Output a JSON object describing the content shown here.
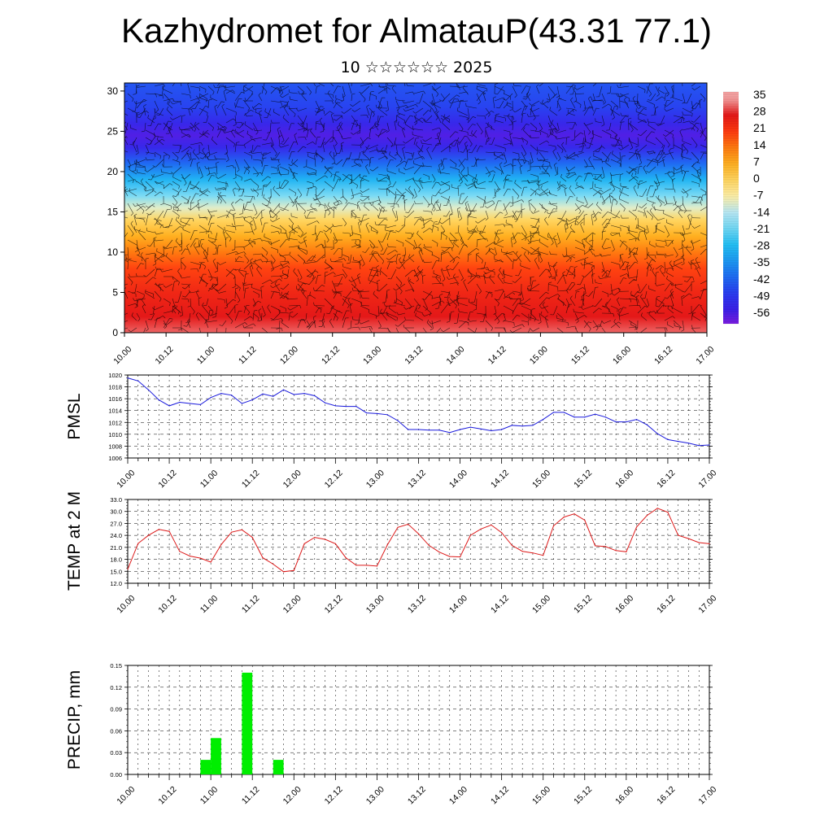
{
  "header": {
    "title": "Kazhydromet for AlmatauP(43.31 77.1)",
    "subtitle": "10 ☆☆☆☆☆☆ 2025"
  },
  "colors": {
    "pmsl_line": "#1a1adc",
    "temp_line": "#dc1a1a",
    "precip_bar": "#00ee00",
    "grid": "#000000"
  },
  "chart_data": [
    {
      "type": "heatmap",
      "title": "",
      "ylabel": "",
      "ylim": [
        0,
        31
      ],
      "y_ticks": [
        "0",
        "5",
        "10",
        "15",
        "20",
        "25",
        "30"
      ],
      "x_ticks": [
        "10.00",
        "10.12",
        "11.00",
        "11.12",
        "12.00",
        "12.12",
        "13.00",
        "13.12",
        "14.00",
        "14.12",
        "15.00",
        "15.12",
        "16.00",
        "16.12",
        "17.00"
      ],
      "overlay": "wind barbs",
      "colorbar_labels": [
        "35",
        "28",
        "21",
        "14",
        "7",
        "0",
        "-7",
        "-14",
        "-21",
        "-28",
        "-35",
        "-42",
        "-49",
        "-56"
      ],
      "profile": [
        {
          "h": 0,
          "t": 32
        },
        {
          "h": 2,
          "t": 28
        },
        {
          "h": 5,
          "t": 25
        },
        {
          "h": 8,
          "t": 20
        },
        {
          "h": 10,
          "t": 14
        },
        {
          "h": 12,
          "t": 7
        },
        {
          "h": 14,
          "t": 0
        },
        {
          "h": 15.5,
          "t": -10
        },
        {
          "h": 17,
          "t": -20
        },
        {
          "h": 19,
          "t": -30
        },
        {
          "h": 21,
          "t": -42
        },
        {
          "h": 23,
          "t": -54
        },
        {
          "h": 24.5,
          "t": -58
        },
        {
          "h": 26,
          "t": -54
        },
        {
          "h": 28,
          "t": -48
        },
        {
          "h": 31,
          "t": -45
        }
      ]
    },
    {
      "type": "line",
      "ylabel": "PMSL",
      "ylim": [
        1006,
        1020
      ],
      "y_ticks": [
        "1006",
        "1008",
        "1010",
        "1012",
        "1014",
        "1016",
        "1018",
        "1020"
      ],
      "x_ticks": [
        "10.00",
        "10.12",
        "11.00",
        "11.12",
        "12.00",
        "12.12",
        "13.00",
        "13.12",
        "14.00",
        "14.12",
        "15.00",
        "15.12",
        "16.00",
        "16.12",
        "17.00"
      ],
      "x": [
        0,
        3,
        6,
        9,
        12,
        15,
        18,
        21,
        24,
        27,
        30,
        33,
        36,
        39,
        42,
        45,
        48,
        51,
        54,
        57,
        60,
        63,
        66,
        69,
        72,
        75,
        78,
        81,
        84,
        87,
        90,
        93,
        96,
        99,
        102,
        105,
        108,
        111,
        114,
        117,
        120,
        123,
        126,
        129,
        132,
        135,
        138,
        141,
        144,
        147,
        150,
        153,
        156,
        159,
        162,
        165,
        168
      ],
      "series": [
        {
          "values": [
            1019.5,
            1019.0,
            1017.5,
            1015.8,
            1014.8,
            1015.4,
            1015.2,
            1015.0,
            1016.2,
            1016.9,
            1016.6,
            1015.2,
            1015.8,
            1016.8,
            1016.4,
            1017.5,
            1016.7,
            1016.9,
            1016.5,
            1015.3,
            1014.8,
            1014.7,
            1014.7,
            1013.6,
            1013.5,
            1013.3,
            1012.3,
            1010.8,
            1010.8,
            1010.7,
            1010.7,
            1010.3,
            1010.8,
            1011.2,
            1010.9,
            1010.6,
            1010.8,
            1011.5,
            1011.4,
            1011.5,
            1012.5,
            1013.7,
            1013.7,
            1012.9,
            1012.9,
            1013.4,
            1012.9,
            1012.1,
            1012.1,
            1012.5,
            1011.6,
            1010.1,
            1009.1,
            1008.8,
            1008.5,
            1008.1,
            1008.2
          ]
        }
      ]
    },
    {
      "type": "line",
      "ylabel": "TEMP at 2 M",
      "ylim": [
        12,
        33
      ],
      "y_ticks": [
        "12.0",
        "15.0",
        "18.0",
        "21.0",
        "24.0",
        "27.0",
        "30.0",
        "33.0"
      ],
      "x_ticks": [
        "10.00",
        "10.12",
        "11.00",
        "11.12",
        "12.00",
        "12.12",
        "13.00",
        "13.12",
        "14.00",
        "14.12",
        "15.00",
        "15.12",
        "16.00",
        "16.12",
        "17.00"
      ],
      "x": [
        0,
        3,
        6,
        9,
        12,
        15,
        18,
        21,
        24,
        27,
        30,
        33,
        36,
        39,
        42,
        45,
        48,
        51,
        54,
        57,
        60,
        63,
        66,
        69,
        72,
        75,
        78,
        81,
        84,
        87,
        90,
        93,
        96,
        99,
        102,
        105,
        108,
        111,
        114,
        117,
        120,
        123,
        126,
        129,
        132,
        135,
        138,
        141,
        144,
        147,
        150,
        153,
        156,
        159,
        162,
        165,
        168
      ],
      "series": [
        {
          "values": [
            15.5,
            22.0,
            24.0,
            25.5,
            25.0,
            20.0,
            18.8,
            18.3,
            17.3,
            21.7,
            24.8,
            25.4,
            23.5,
            18.4,
            16.8,
            14.9,
            15.2,
            21.9,
            23.5,
            23.0,
            21.9,
            18.4,
            16.5,
            16.5,
            16.3,
            21.6,
            26.0,
            26.8,
            24.4,
            21.5,
            19.8,
            18.7,
            18.6,
            24.0,
            25.6,
            26.6,
            24.7,
            21.5,
            20.0,
            19.6,
            19.0,
            26.4,
            28.6,
            29.4,
            27.8,
            21.4,
            21.2,
            20.2,
            19.9,
            26.1,
            29.0,
            30.8,
            29.8,
            24.0,
            23.2,
            22.2,
            21.9
          ]
        }
      ]
    },
    {
      "type": "bar",
      "ylabel": "PRECIP, mm",
      "ylim": [
        0,
        0.15
      ],
      "y_ticks": [
        "0.00",
        "0.03",
        "0.06",
        "0.09",
        "0.12",
        "0.15"
      ],
      "x_ticks": [
        "10.00",
        "10.12",
        "11.00",
        "11.12",
        "12.00",
        "12.12",
        "13.00",
        "13.12",
        "14.00",
        "14.12",
        "15.00",
        "15.12",
        "16.00",
        "16.12",
        "17.00"
      ],
      "x": [
        22.5,
        25.5,
        34.5,
        43.5
      ],
      "values": [
        0.02,
        0.05,
        0.14,
        0.02
      ]
    }
  ]
}
